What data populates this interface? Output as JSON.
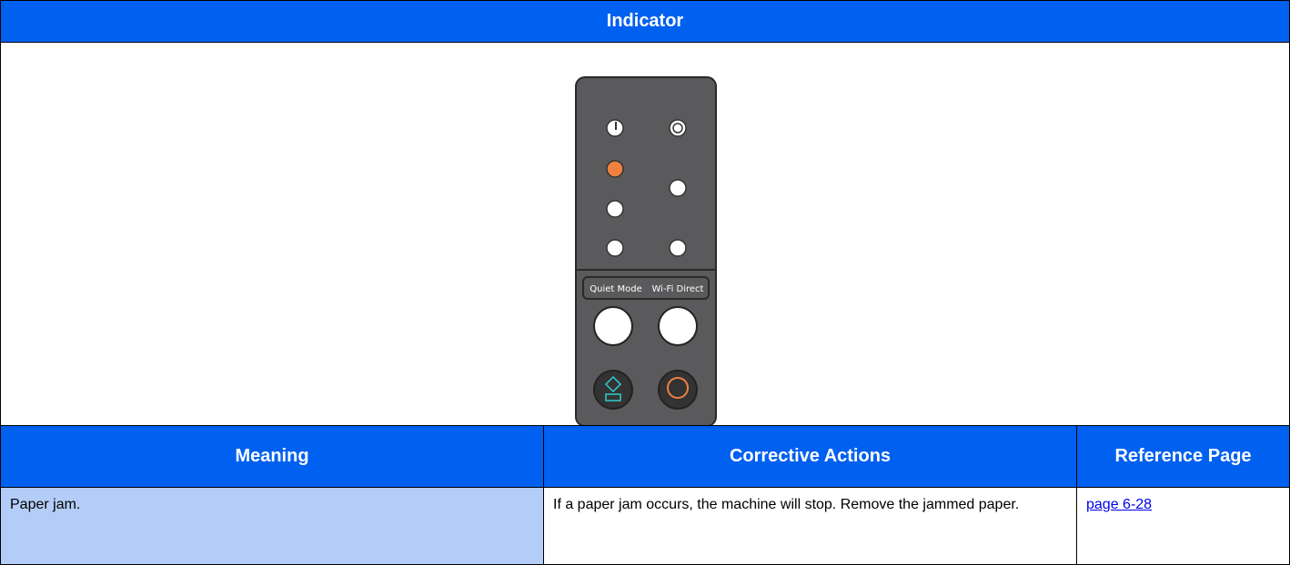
{
  "table": {
    "title": "Indicator",
    "panel": {
      "labels": [
        "Quiet Mode",
        "Wi-Fi Direct"
      ]
    },
    "columns": [
      "Meaning",
      "Corrective Actions",
      "Reference Page"
    ],
    "rows": [
      [
        "Paper jam.",
        "If a paper jam occurs, the machine will stop. Remove the jammed paper.",
        "page 6-28"
      ]
    ]
  }
}
